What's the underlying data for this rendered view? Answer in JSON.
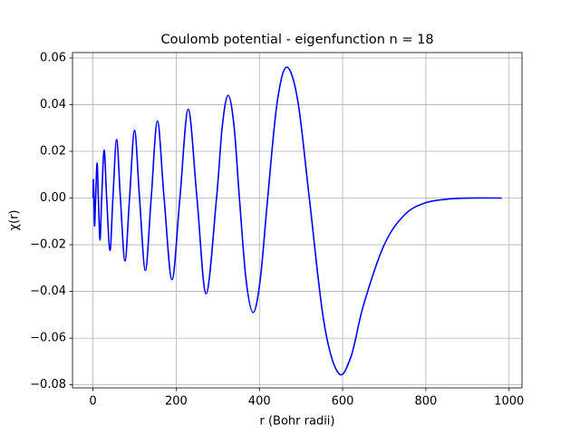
{
  "chart_data": {
    "type": "line",
    "title": "Coulomb potential - eigenfunction n = 18",
    "xlabel": "r  (Bohr radii)",
    "ylabel": "χ(r)",
    "x": [
      0,
      1,
      2.5,
      4,
      6.5,
      10,
      13,
      17,
      21,
      27,
      33,
      41,
      48,
      57,
      66,
      77,
      88,
      100,
      112,
      126,
      140,
      155,
      171,
      190,
      209,
      229,
      250,
      272,
      297,
      311,
      325,
      339,
      352,
      368,
      385,
      402,
      420,
      442,
      465,
      492,
      520,
      555,
      590,
      620,
      650,
      700,
      750,
      800,
      850,
      900,
      982
    ],
    "values": [
      0,
      0.008,
      0,
      -0.012,
      0,
      0.015,
      0,
      -0.018,
      0,
      0.0205,
      0,
      -0.0225,
      0,
      0.025,
      0,
      -0.027,
      0,
      0.029,
      0,
      -0.031,
      0,
      0.033,
      0,
      -0.035,
      0,
      0.038,
      0,
      -0.041,
      0,
      0.031,
      0.044,
      0.031,
      0,
      -0.035,
      -0.049,
      -0.035,
      0,
      0.04,
      0.056,
      0.042,
      0,
      -0.053,
      -0.075,
      -0.068,
      -0.046,
      -0.02,
      -0.007,
      -0.002,
      -0.0005,
      0,
      0
    ],
    "color": "#0000ff",
    "xlim": [
      -49.1,
      1031.1
    ],
    "ylim": [
      -0.0813,
      0.0623
    ],
    "xticks": [
      0,
      200,
      400,
      600,
      800,
      1000
    ],
    "yticks": [
      {
        "value": -0.08,
        "label": "−0.08"
      },
      {
        "value": -0.06,
        "label": "−0.06"
      },
      {
        "value": -0.04,
        "label": "−0.04"
      },
      {
        "value": -0.02,
        "label": "−0.02"
      },
      {
        "value": 0,
        "label": "0.00"
      },
      0.02,
      0.04,
      0.06
    ],
    "grid": true
  }
}
